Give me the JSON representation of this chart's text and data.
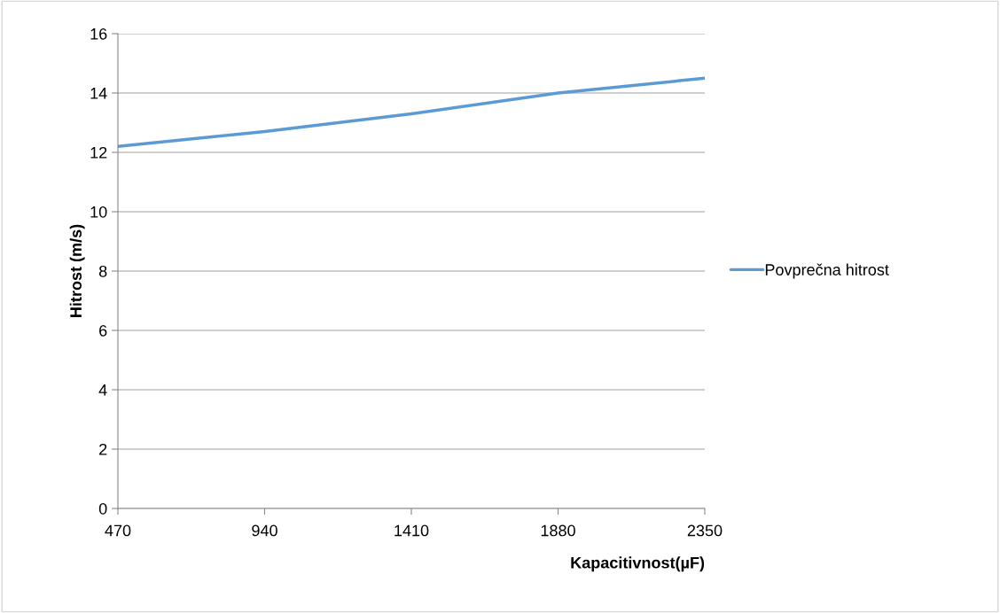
{
  "chart_data": {
    "type": "line",
    "xlabel": "Kapacitivnost(µF)",
    "ylabel": "Hitrost (m/s)",
    "x": [
      470,
      940,
      1410,
      1880,
      2350
    ],
    "series": [
      {
        "name": "Povprečna hitrost",
        "color": "#5b9bd5",
        "values": [
          12.2,
          12.7,
          13.3,
          14.0,
          14.5
        ]
      }
    ],
    "xlim": [
      470,
      2350
    ],
    "xticks": [
      470,
      940,
      1410,
      1880,
      2350
    ],
    "ylim": [
      0,
      16
    ],
    "yticks": [
      0,
      2,
      4,
      6,
      8,
      10,
      12,
      14,
      16
    ],
    "grid": "y",
    "legend": "right",
    "marker": "none",
    "line_style": "solid"
  }
}
